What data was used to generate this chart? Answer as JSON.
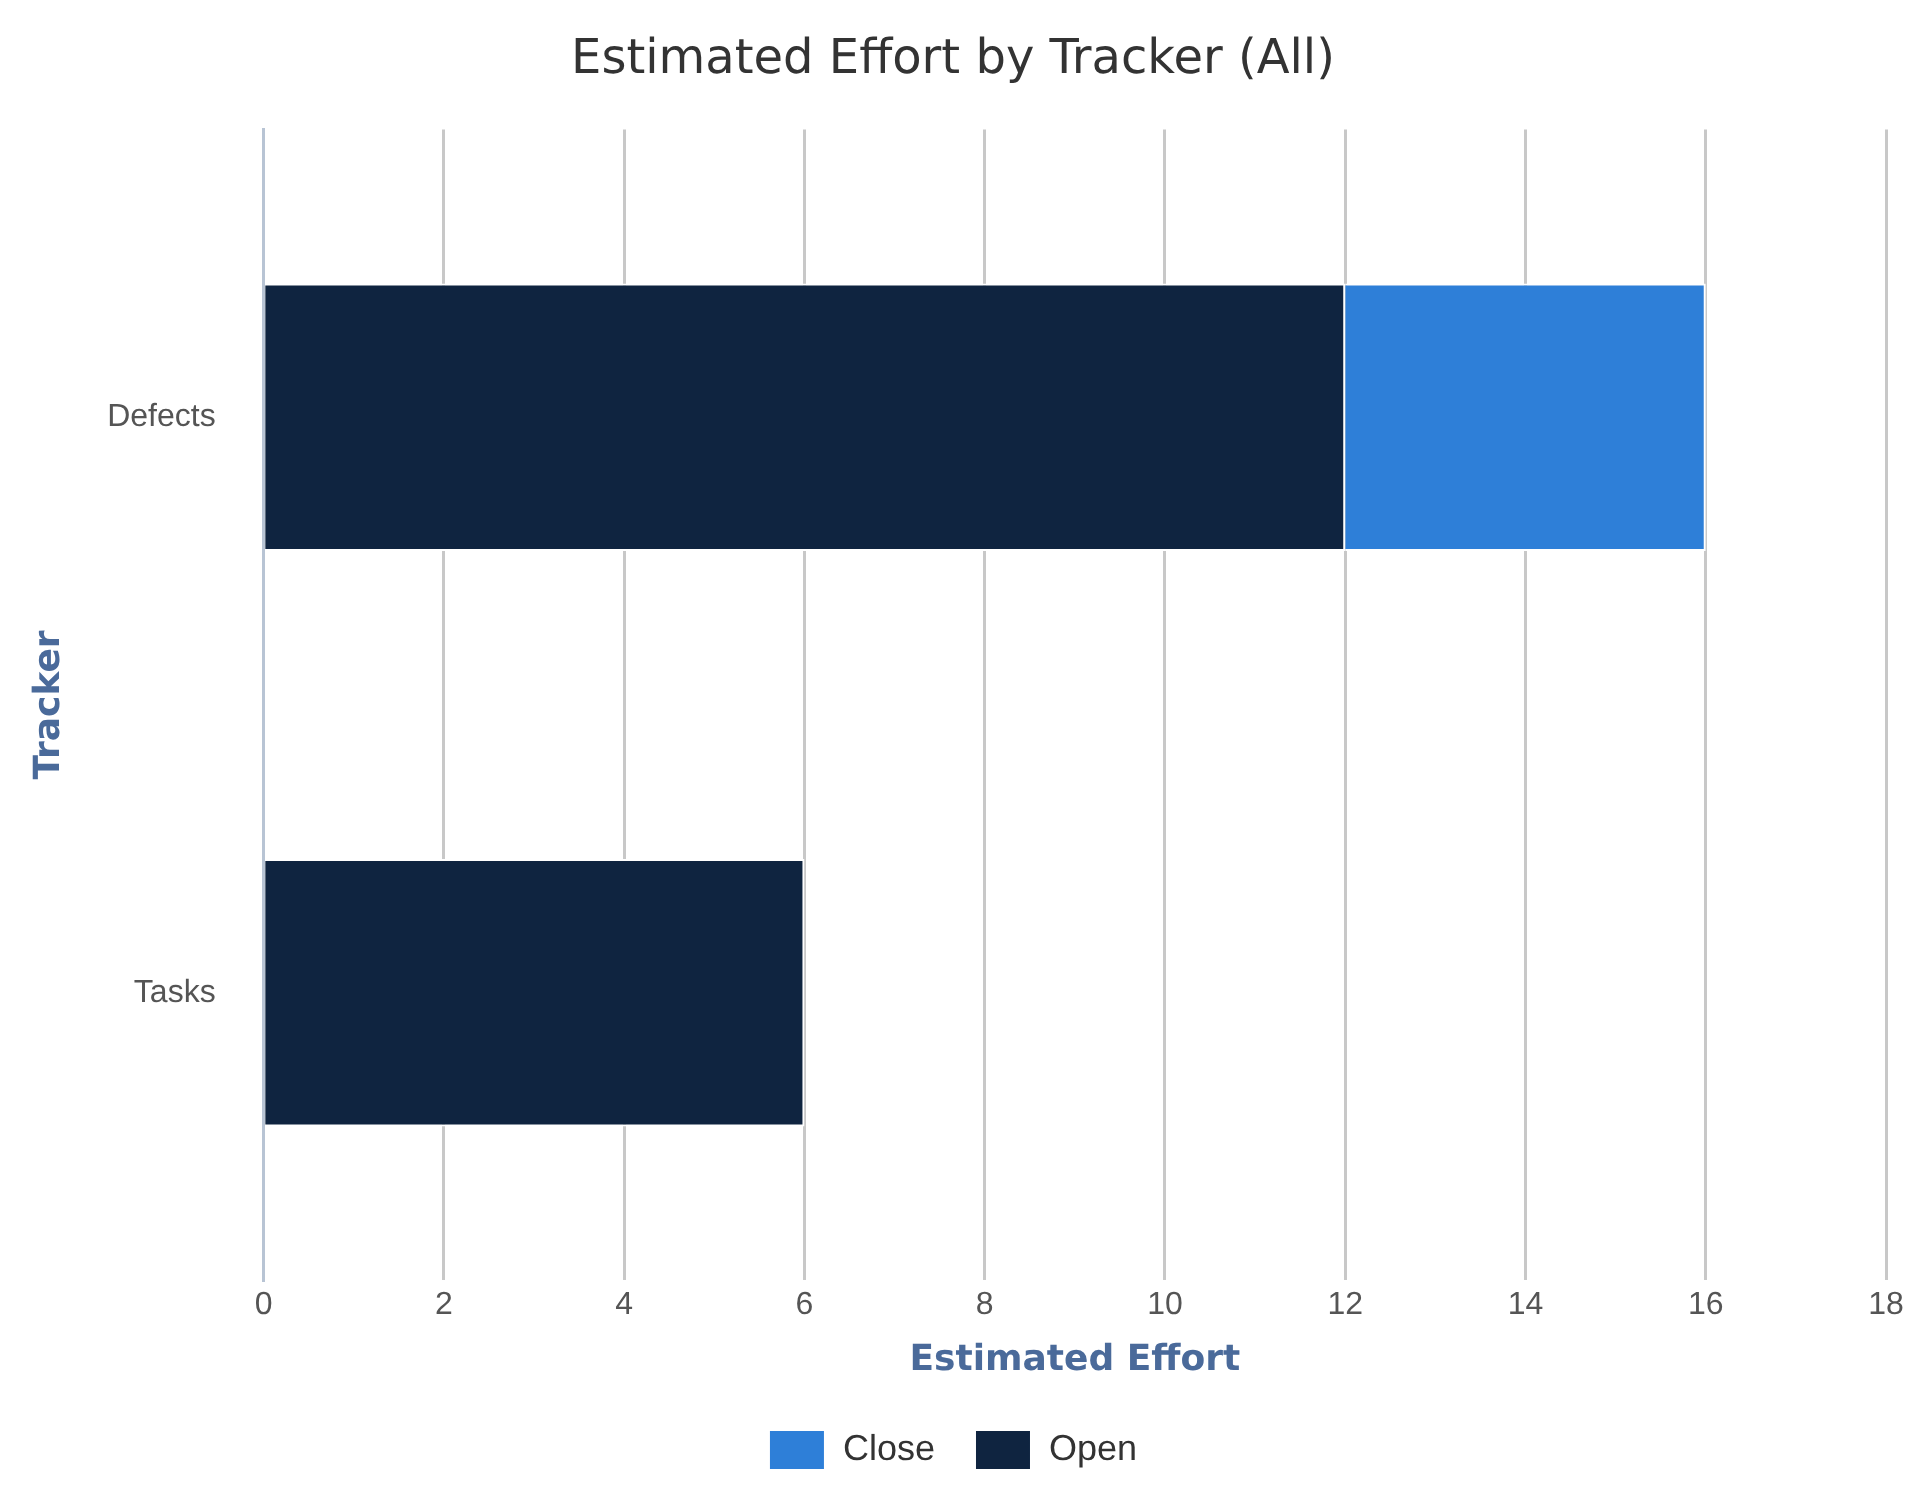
{
  "chart_data": {
    "type": "bar",
    "title": "Estimated Effort by Tracker (All)",
    "xlabel": "Estimated Effort",
    "ylabel": "Tracker",
    "orientation": "horizontal",
    "stacked": true,
    "categories": [
      "Defects",
      "Tasks"
    ],
    "series": [
      {
        "name": "Open",
        "color": "#0f2440",
        "values": [
          12,
          6
        ]
      },
      {
        "name": "Close",
        "color": "#2e7fd8",
        "values": [
          4,
          0
        ]
      }
    ],
    "xlim": [
      0,
      18
    ],
    "xticks": [
      0,
      2,
      4,
      6,
      8,
      10,
      12,
      14,
      16,
      18
    ],
    "grid": "x",
    "legend": "bottom"
  }
}
